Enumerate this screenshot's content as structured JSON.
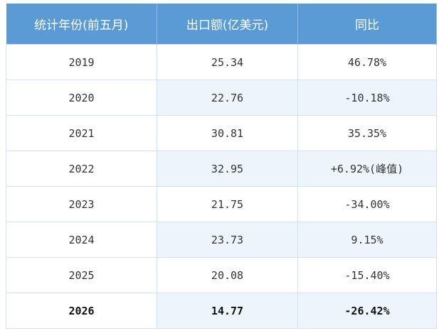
{
  "table": {
    "header": [
      "统计年份(前五月)",
      "出口额(亿美元)",
      "同比"
    ],
    "rows": [
      [
        "2019",
        "25.34",
        "46.78%"
      ],
      [
        "2020",
        "22.76",
        "-10.18%"
      ],
      [
        "2021",
        "30.81",
        "35.35%"
      ],
      [
        "2022",
        "32.95",
        "+6.92%(峰值)"
      ],
      [
        "2023",
        "21.75",
        "-34.00%"
      ],
      [
        "2024",
        "23.73",
        "9.15%"
      ],
      [
        "2025",
        "20.08",
        "-15.40%"
      ],
      [
        "2026",
        "14.77",
        "-26.42%"
      ]
    ]
  }
}
